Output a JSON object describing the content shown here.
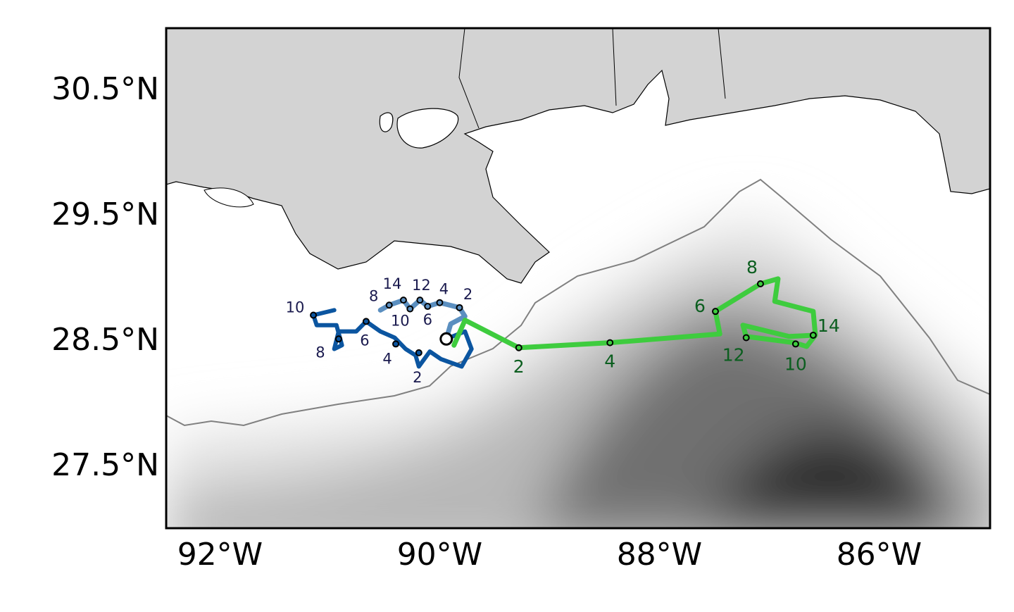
{
  "chart_data": {
    "type": "map",
    "xlim": [
      -92.49,
      -84.99
    ],
    "ylim": [
      27.01,
      31.0
    ],
    "xticks": [
      {
        "value": -92,
        "label": "92°W"
      },
      {
        "value": -90,
        "label": "90°W"
      },
      {
        "value": -88,
        "label": "88°W"
      },
      {
        "value": -86,
        "label": "86°W"
      }
    ],
    "yticks": [
      {
        "value": 27.5,
        "label": "27.5°N"
      },
      {
        "value": 28.5,
        "label": "28.5°N"
      },
      {
        "value": 29.5,
        "label": "29.5°N"
      },
      {
        "value": 30.5,
        "label": "30.5°N"
      }
    ],
    "origin": {
      "x": -89.94,
      "y": 28.52
    },
    "series": [
      {
        "color": "#3ecc3e",
        "label_color": "#0b5e1f",
        "x": [
          -89.87,
          -89.77,
          -89.28,
          -88.45,
          -87.45,
          -87.49,
          -87.08,
          -86.92,
          -86.95,
          -86.6,
          -86.58,
          -86.66,
          -86.77,
          -87.21,
          -87.24,
          -86.82,
          -86.58
        ],
        "y": [
          28.47,
          28.67,
          28.45,
          28.49,
          28.56,
          28.74,
          28.96,
          29.0,
          28.82,
          28.74,
          28.55,
          28.46,
          28.49,
          28.54,
          28.63,
          28.54,
          28.55
        ],
        "markers": {
          "labels": [
            "2",
            "4",
            "6",
            "8",
            "10",
            "12",
            "14"
          ],
          "x": [
            -89.28,
            -88.45,
            -87.49,
            -87.08,
            -86.76,
            -87.21,
            -86.6
          ],
          "y": [
            28.45,
            28.49,
            28.74,
            28.96,
            28.48,
            28.53,
            28.55
          ]
        }
      },
      {
        "color": "#0b55a0",
        "label_color": "#1a1a4e",
        "x": [
          -89.94,
          -89.77,
          -89.71,
          -89.8,
          -89.99,
          -90.09,
          -90.19,
          -90.22,
          -90.31,
          -90.41,
          -90.54,
          -90.67,
          -90.76,
          -90.92,
          -90.96,
          -90.89,
          -90.94,
          -91.12,
          -91.15,
          -90.96
        ],
        "y": [
          28.52,
          28.58,
          28.44,
          28.3,
          28.36,
          28.42,
          28.3,
          28.39,
          28.44,
          28.53,
          28.58,
          28.66,
          28.58,
          28.58,
          28.44,
          28.47,
          28.63,
          28.63,
          28.71,
          28.75
        ],
        "markers": {
          "labels": [
            "2",
            "4",
            "6",
            "8",
            "10"
          ],
          "x": [
            -90.19,
            -90.4,
            -90.67,
            -90.92,
            -91.15
          ],
          "y": [
            28.41,
            28.48,
            28.66,
            28.52,
            28.71
          ]
        }
      },
      {
        "color": "#5b8fc0",
        "label_color": "#1a1a4e",
        "x": [
          -89.94,
          -89.9,
          -89.77,
          -89.82,
          -90.0,
          -90.11,
          -90.18,
          -90.27,
          -90.33,
          -90.46,
          -90.54
        ],
        "y": [
          28.52,
          28.64,
          28.7,
          28.77,
          28.81,
          28.78,
          28.83,
          28.76,
          28.83,
          28.79,
          28.75
        ],
        "markers": {
          "labels": [
            "2",
            "4",
            "6",
            "8",
            "10",
            "12",
            "14"
          ],
          "x": [
            -89.82,
            -90.0,
            -90.11,
            -90.46,
            -90.27,
            -90.18,
            -90.33
          ],
          "y": [
            28.77,
            28.81,
            28.78,
            28.79,
            28.76,
            28.83,
            28.83
          ]
        }
      }
    ]
  }
}
